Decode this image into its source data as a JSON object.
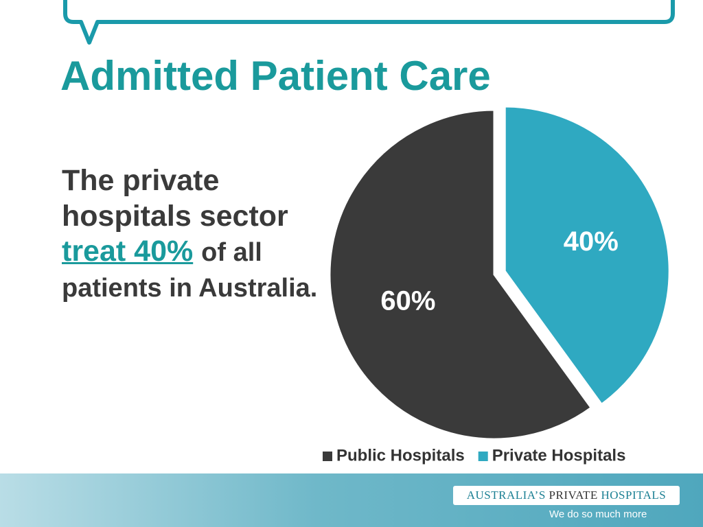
{
  "slide": {
    "title": "Admitted Patient Care",
    "body": [
      "The private hospitals sector",
      "treat 40%",
      "of all patients in Australia."
    ],
    "logo": [
      "AUSTRALIA’S",
      "PRIVATE",
      "HOSPITALS"
    ],
    "tagline": "We do so much more"
  },
  "chart_data": {
    "type": "pie",
    "categories": [
      "Public Hospitals",
      "Private Hospitals"
    ],
    "values": [
      60,
      40
    ],
    "value_labels": [
      "60%",
      "40%"
    ],
    "colors": [
      "#3a3a3a",
      "#2fa9c1"
    ],
    "legend": "bottom"
  }
}
